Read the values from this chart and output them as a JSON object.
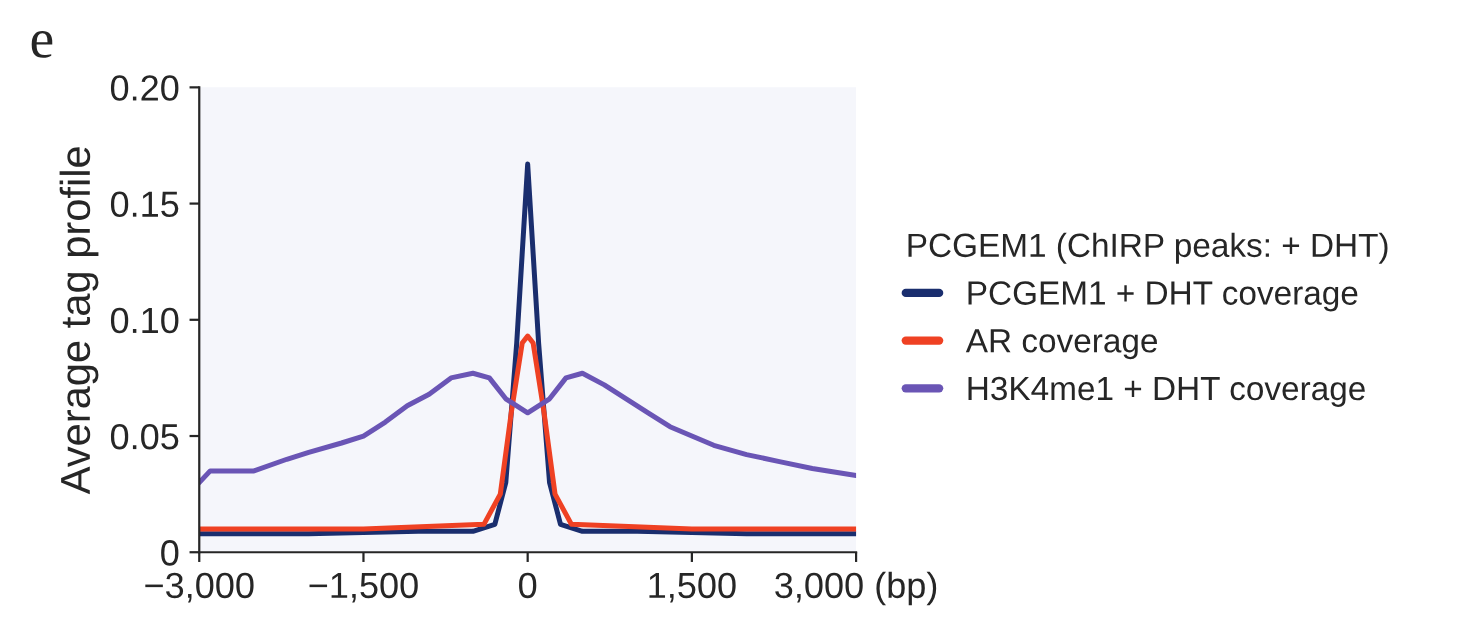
{
  "chart_data": {
    "type": "line",
    "ylabel": "Average tag profile",
    "legend_title": "PCGEM1 (ChIRP peaks: + DHT)",
    "legend": "right",
    "grid": false,
    "annotations": [
      "e"
    ],
    "xlim": [
      -3000,
      3000
    ],
    "xticks": [
      {
        "value": -3000,
        "label": "−3,000"
      },
      {
        "value": -1500,
        "label": "−1,500"
      },
      0,
      {
        "value": 1500,
        "label": "1,500"
      },
      {
        "value": 3000,
        "label": "3,000 (bp)"
      }
    ],
    "ylim": [
      0,
      0.2
    ],
    "yticks": [
      0,
      0.05,
      {
        "value": 0.1,
        "label": "0.10"
      },
      0.15,
      {
        "value": 0.2,
        "label": "0.20"
      }
    ],
    "series": [
      {
        "name": "PCGEM1 + DHT coverage",
        "color": "#1a2e6e",
        "x": [
          -3000,
          -2000,
          -1000,
          -500,
          -300,
          -200,
          -100,
          0,
          100,
          200,
          300,
          500,
          1000,
          2000,
          3000
        ],
        "values": [
          0.008,
          0.008,
          0.009,
          0.009,
          0.012,
          0.03,
          0.09,
          0.167,
          0.09,
          0.03,
          0.012,
          0.009,
          0.009,
          0.008,
          0.008
        ]
      },
      {
        "name": "AR coverage",
        "color": "#ef4123",
        "x": [
          -3000,
          -1500,
          -400,
          -250,
          -150,
          -50,
          0,
          50,
          150,
          250,
          400,
          1500,
          3000
        ],
        "values": [
          0.01,
          0.01,
          0.012,
          0.025,
          0.06,
          0.09,
          0.093,
          0.09,
          0.06,
          0.025,
          0.012,
          0.01,
          0.01
        ]
      },
      {
        "name": "H3K4me1 + DHT coverage",
        "color": "#6a55b5",
        "x": [
          -3000,
          -2900,
          -2500,
          -2200,
          -2000,
          -1700,
          -1500,
          -1300,
          -1100,
          -900,
          -700,
          -500,
          -350,
          -200,
          0,
          200,
          350,
          500,
          700,
          900,
          1100,
          1300,
          1500,
          1700,
          2000,
          2300,
          2600,
          3000
        ],
        "values": [
          0.03,
          0.035,
          0.035,
          0.04,
          0.043,
          0.047,
          0.05,
          0.056,
          0.063,
          0.068,
          0.075,
          0.077,
          0.075,
          0.066,
          0.06,
          0.066,
          0.075,
          0.077,
          0.072,
          0.066,
          0.06,
          0.054,
          0.05,
          0.046,
          0.042,
          0.039,
          0.036,
          0.033
        ]
      }
    ]
  }
}
